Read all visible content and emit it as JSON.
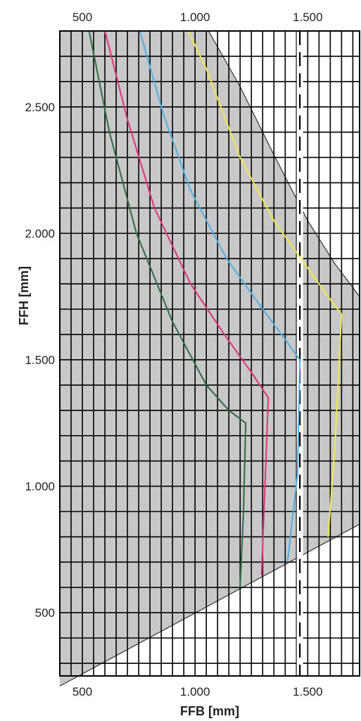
{
  "chart_data": {
    "type": "line",
    "title": "",
    "xlabel": "FFB [mm]",
    "ylabel": "FFH [mm]",
    "xlim": [
      400,
      1730
    ],
    "ylim": [
      250,
      2800
    ],
    "x_ticks": [
      500,
      1000,
      1500
    ],
    "x_tick_labels": [
      "500",
      "1.000",
      "1.500"
    ],
    "y_ticks": [
      500,
      1000,
      1500,
      2000,
      2500
    ],
    "y_tick_labels": [
      "500",
      "1.000",
      "1.500",
      "2.000",
      "2.500"
    ],
    "grid": true,
    "minor_grid_x_step": 50,
    "minor_grid_y_step": 100,
    "dashed_reference_x": 1465,
    "shaded_region": {
      "upper_boundary": [
        [
          1060,
          2800
        ],
        [
          1200,
          2580
        ],
        [
          1350,
          2310
        ],
        [
          1500,
          2050
        ],
        [
          1620,
          1880
        ],
        [
          1730,
          1750
        ]
      ],
      "lower_boundary": [
        [
          400,
          210
        ],
        [
          1730,
          850
        ]
      ],
      "color": "#c8c8c8"
    },
    "series": [
      {
        "color": "#2e6b45",
        "x": [
          530,
          620,
          740,
          900,
          1050,
          1150,
          1225,
          1215,
          1200
        ],
        "y": [
          2800,
          2400,
          2000,
          1650,
          1400,
          1300,
          1250,
          900,
          600
        ]
      },
      {
        "color": "#e2307a",
        "x": [
          600,
          700,
          820,
          980,
          1130,
          1250,
          1325,
          1310,
          1295
        ],
        "y": [
          2800,
          2450,
          2100,
          1800,
          1600,
          1450,
          1350,
          1000,
          650
        ]
      },
      {
        "color": "#4fb0df",
        "x": [
          755,
          860,
          980,
          1140,
          1300,
          1400,
          1465,
          1455,
          1410
        ],
        "y": [
          2800,
          2470,
          2170,
          1900,
          1700,
          1580,
          1500,
          1050,
          700
        ]
      },
      {
        "color": "#eee84a",
        "x": [
          970,
          1050,
          1200,
          1350,
          1470,
          1590,
          1650,
          1620,
          1590
        ],
        "y": [
          2800,
          2650,
          2300,
          2050,
          1900,
          1750,
          1680,
          1150,
          800
        ]
      }
    ]
  }
}
